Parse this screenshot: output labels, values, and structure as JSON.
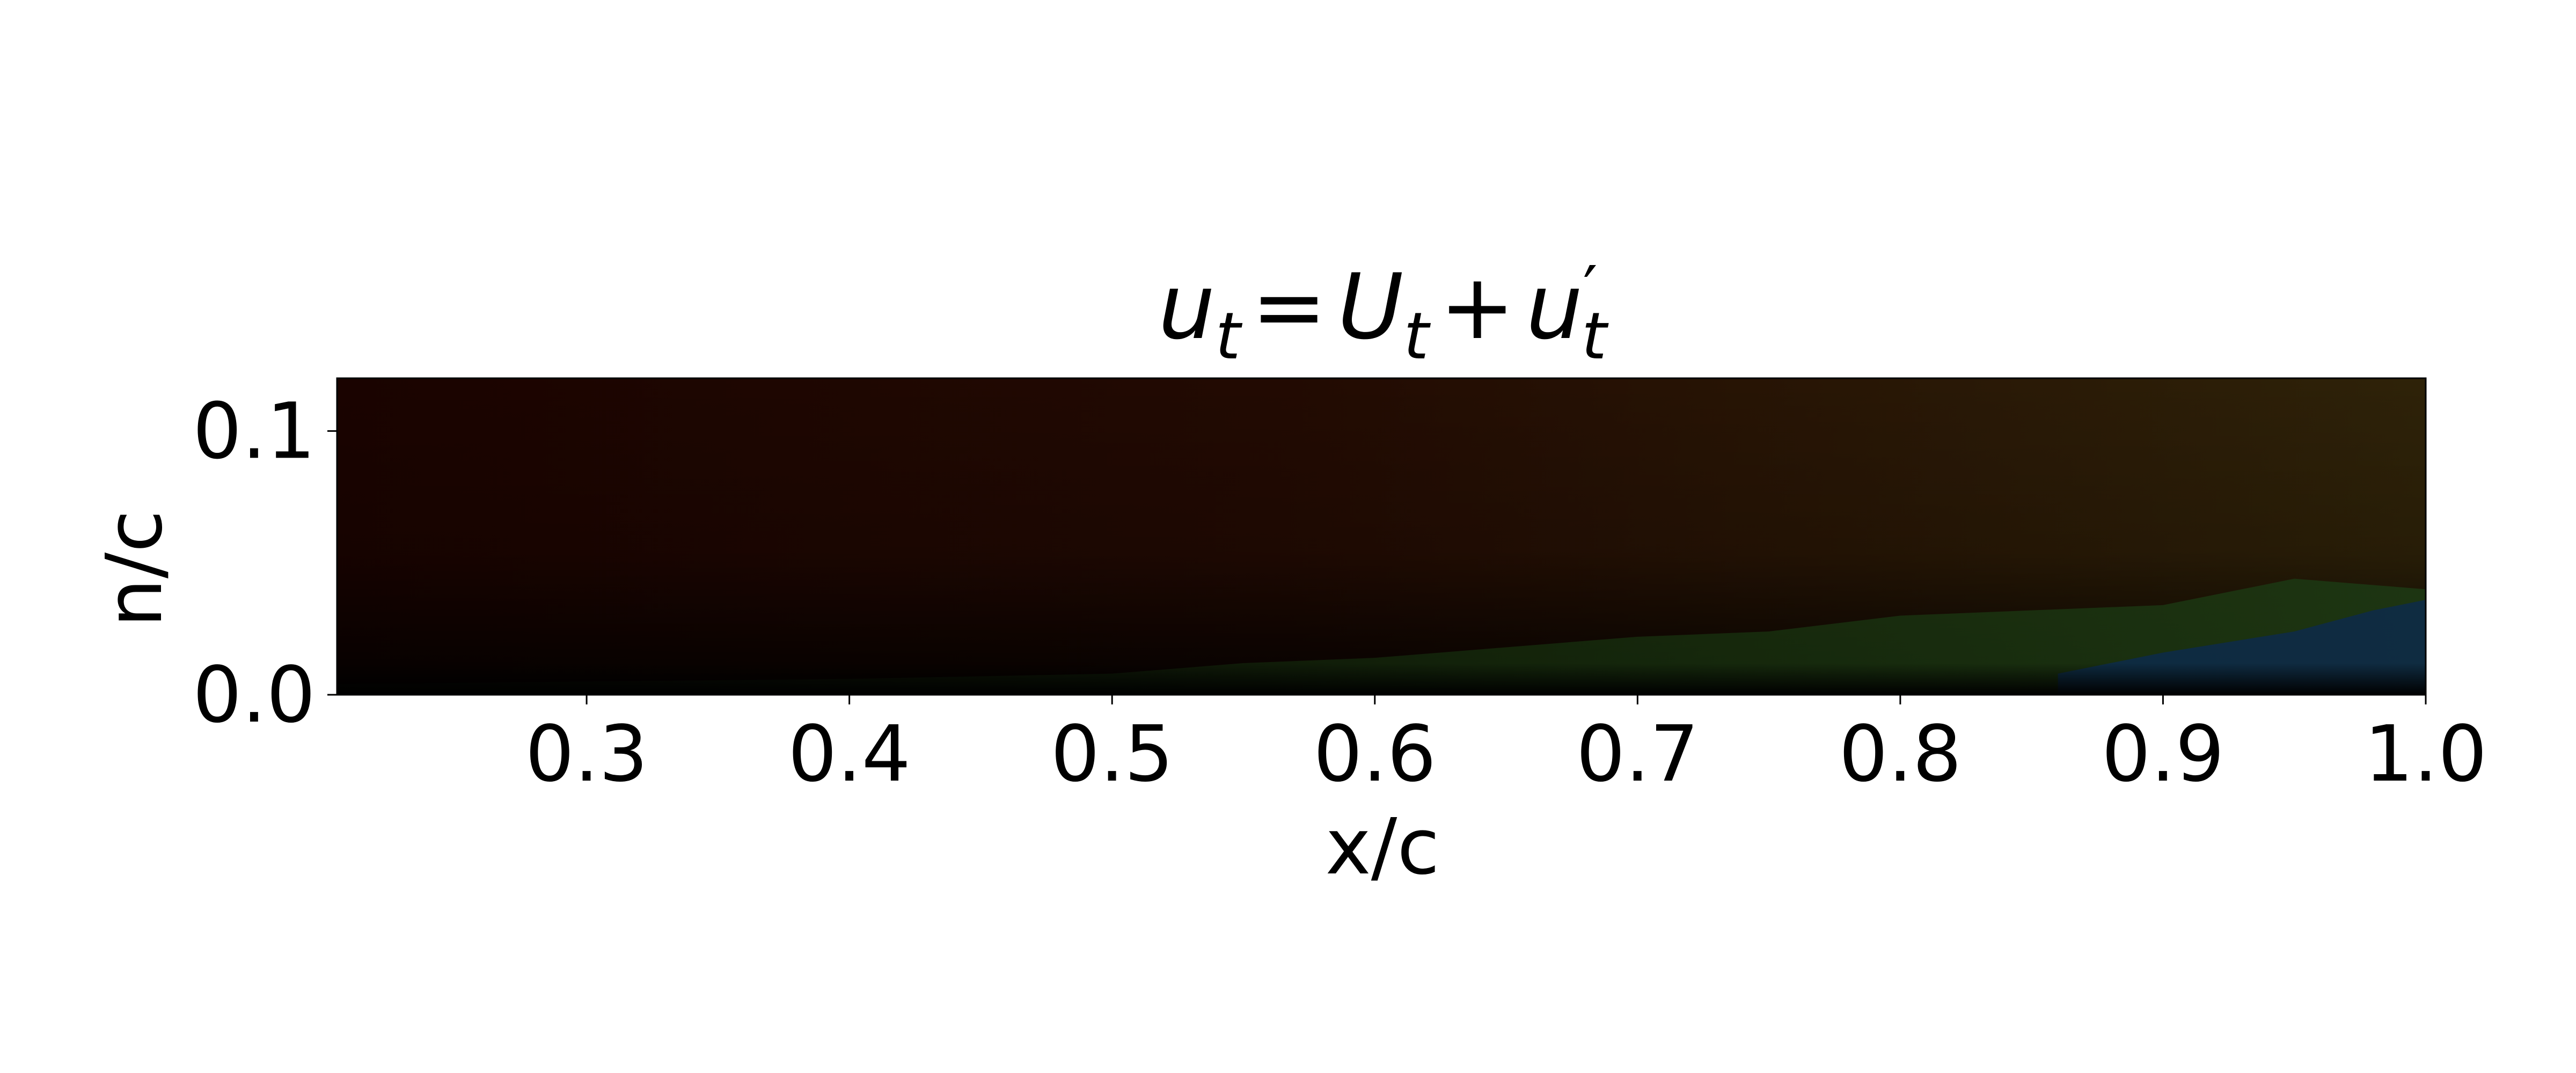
{
  "chart_data": {
    "type": "heatmap",
    "title": "u_t = U_t + u'_t",
    "title_parts": {
      "u1": "u",
      "t1": "t",
      "eq": "=",
      "U": "U",
      "t2": "t",
      "plus": "+",
      "u2": "u",
      "prime": "′",
      "t3": "t"
    },
    "xlabel": "x/c",
    "ylabel": "n/c",
    "xlim": [
      0.205,
      1.0
    ],
    "ylim": [
      0.0,
      0.12
    ],
    "x_ticks": [
      0.3,
      0.4,
      0.5,
      0.6,
      0.7,
      0.8,
      0.9,
      1.0
    ],
    "x_tick_labels": [
      "0.3",
      "0.4",
      "0.5",
      "0.6",
      "0.7",
      "0.8",
      "0.9",
      "1.0"
    ],
    "y_ticks": [
      0.0,
      0.1
    ],
    "y_tick_labels": [
      "0.0",
      "0.1"
    ],
    "grid": false,
    "colormap": "multichannel RGB (dark red upper field, green/blue near-wall region, black at wall)",
    "colors": {
      "upper_field": "#1a0300",
      "upper_field_right": "#2e2208",
      "wall": "#000000",
      "green_region": "#1d3512",
      "blue_region": "#0d2a4a"
    },
    "boundary_layer_edge": {
      "x": [
        0.205,
        0.3,
        0.4,
        0.5,
        0.55,
        0.6,
        0.65,
        0.7,
        0.75,
        0.8,
        0.85,
        0.9,
        0.95,
        1.0
      ],
      "n": [
        0.004,
        0.005,
        0.006,
        0.008,
        0.012,
        0.014,
        0.018,
        0.022,
        0.024,
        0.03,
        0.032,
        0.034,
        0.044,
        0.04
      ]
    },
    "blue_core_edge": {
      "x": [
        0.86,
        0.9,
        0.95,
        0.98,
        1.0
      ],
      "n": [
        0.008,
        0.016,
        0.024,
        0.032,
        0.036
      ]
    }
  }
}
